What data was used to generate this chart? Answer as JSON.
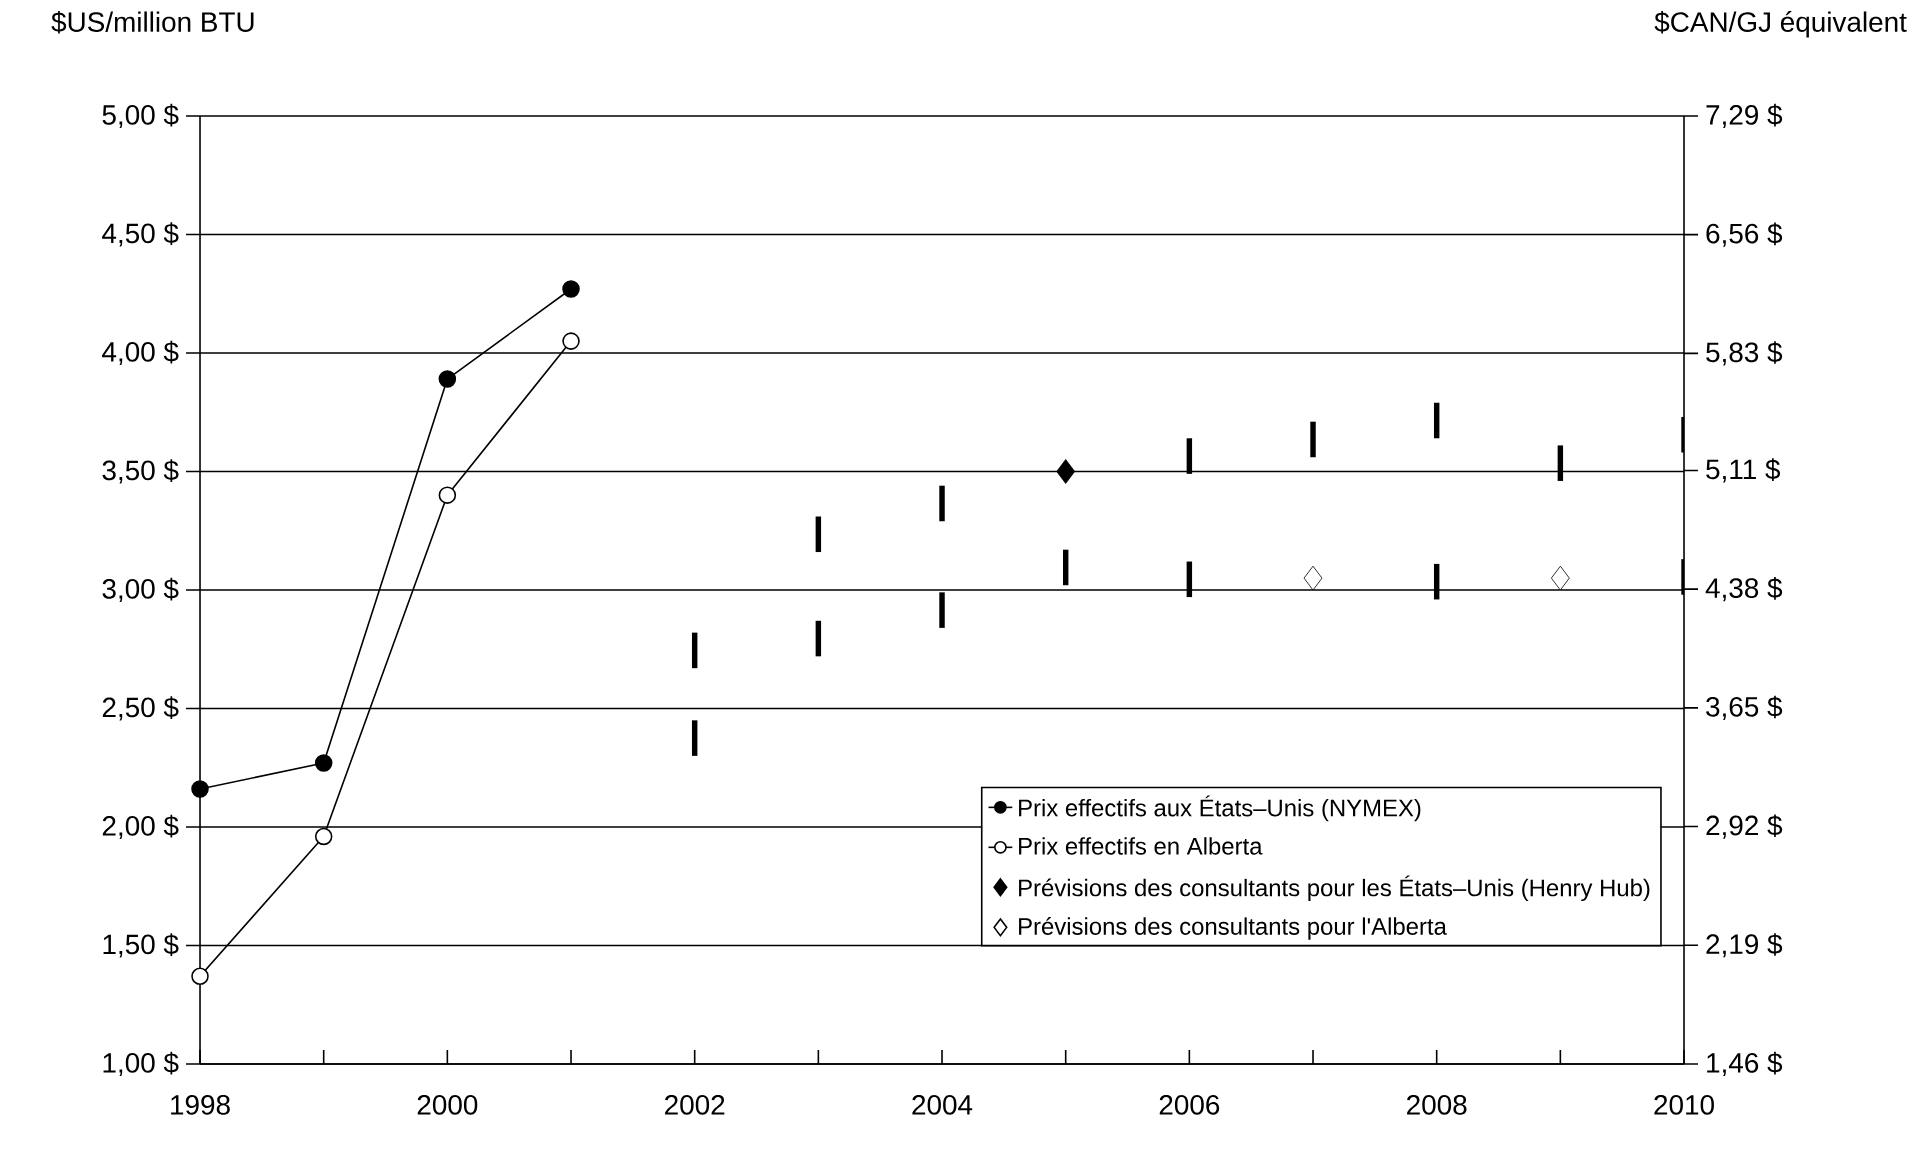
{
  "chart_data": {
    "type": "line",
    "ylabel": "$US/million BTU",
    "y2label": "$CAN/GJ équivalent",
    "xlim": [
      1998,
      2010
    ],
    "xticks": [
      1998,
      {
        "value": 1999,
        "label": null
      },
      2000,
      {
        "value": 2001,
        "label": null
      },
      2002,
      {
        "value": 2003,
        "label": null
      },
      2004,
      {
        "value": 2005,
        "label": null
      },
      2006,
      {
        "value": 2007,
        "label": null
      },
      2008,
      {
        "value": 2009,
        "label": null
      },
      2010
    ],
    "ylim": [
      1,
      5
    ],
    "yticks": [
      {
        "value": 1,
        "label": "1,00 $"
      },
      {
        "value": 1.5,
        "label": "1,50 $"
      },
      {
        "value": 2,
        "label": "2,00 $"
      },
      {
        "value": 2.5,
        "label": "2,50 $"
      },
      {
        "value": 3,
        "label": "3,00 $"
      },
      {
        "value": 3.5,
        "label": "3,50 $"
      },
      {
        "value": 4,
        "label": "4,00 $"
      },
      {
        "value": 4.5,
        "label": "4,50 $"
      },
      {
        "value": 5,
        "label": "5,00 $"
      }
    ],
    "y2lim": [
      1.46,
      7.29
    ],
    "y2ticks": [
      {
        "value": 1.46,
        "label": "1,46 $"
      },
      {
        "value": 2.19,
        "label": "2,19 $"
      },
      {
        "value": 2.92,
        "label": "2,92 $"
      },
      {
        "value": 3.65,
        "label": "3,65 $"
      },
      {
        "value": 4.38,
        "label": "4,38 $"
      },
      {
        "value": 5.11,
        "label": "5,11 $"
      },
      {
        "value": 5.83,
        "label": "5,83 $"
      },
      {
        "value": 6.56,
        "label": "6,56 $"
      },
      {
        "value": 7.29,
        "label": "7,29 $"
      }
    ],
    "grid": "y",
    "legend": "bottom right",
    "series": [
      {
        "name": "Prix effectifs aux États–Unis (NYMEX)",
        "color": "#000000",
        "marker": "circle",
        "x": [
          1998,
          1999,
          2000,
          2001
        ],
        "values": [
          2.16,
          2.27,
          3.89,
          4.27
        ]
      },
      {
        "name": "Prix effectifs en Alberta",
        "color": "#ffffff",
        "marker": "circle",
        "x": [
          1998,
          1999,
          2000,
          2001
        ],
        "values": [
          1.37,
          1.96,
          3.4,
          4.05
        ]
      },
      {
        "name": "Prévisions des consultants pour les États–Unis (Henry Hub)",
        "type": "scatter",
        "color": "#000000",
        "marker": "diamond",
        "x": [
          2005
        ],
        "values": [
          3.5
        ]
      },
      {
        "name": "Prévisions des consultants pour l'Alberta",
        "type": "scatter",
        "color": "#ffffff",
        "marker": "diamond",
        "x": [
          2007,
          2009
        ],
        "values": [
          3.05,
          3.05
        ]
      },
      {
        "type": "bar",
        "color": "#000000",
        "x": [
          2002,
          2003,
          2004,
          2005,
          2006,
          2007,
          2008,
          2009,
          2010
        ],
        "base": [
          2.67,
          3.16,
          3.29,
          null,
          3.49,
          3.56,
          3.64,
          3.46,
          3.58
        ],
        "values": [
          0.15,
          0.15,
          0.15,
          null,
          0.15,
          0.15,
          0.15,
          0.15,
          0.15
        ]
      },
      {
        "type": "bar",
        "color": "#000000",
        "x": [
          2002,
          2003,
          2004,
          2005,
          2006,
          2007,
          2008,
          2009,
          2010
        ],
        "base": [
          2.3,
          2.72,
          2.84,
          3.02,
          2.97,
          null,
          2.96,
          null,
          2.98
        ],
        "values": [
          0.15,
          0.15,
          0.15,
          0.15,
          0.15,
          null,
          0.15,
          null,
          0.15
        ]
      }
    ]
  }
}
